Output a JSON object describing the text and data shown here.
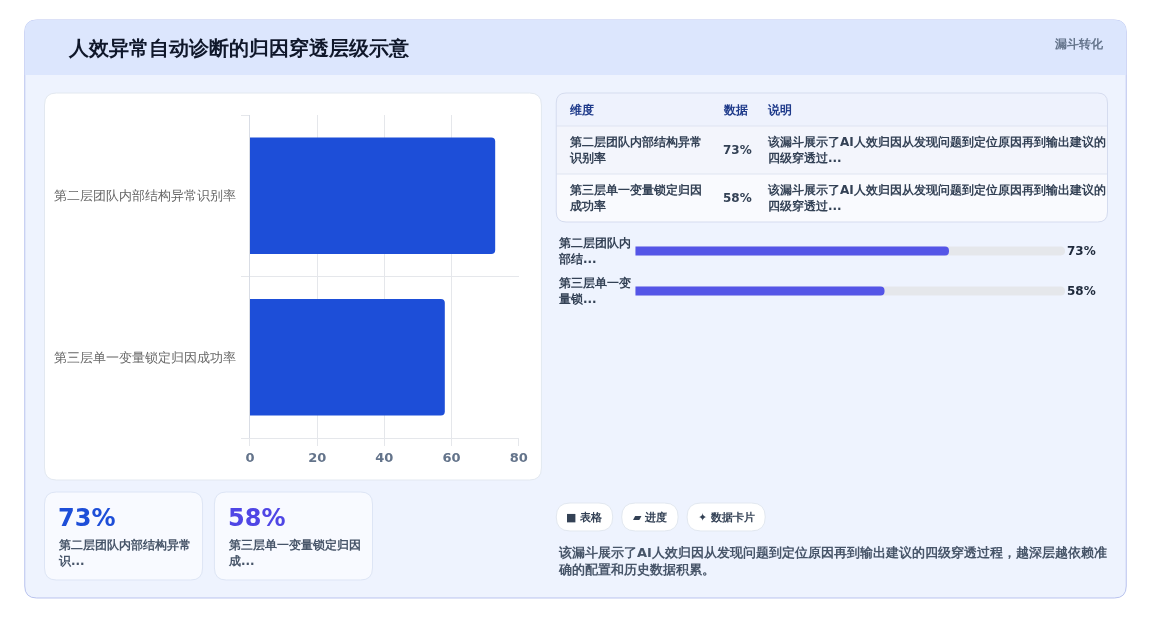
{
  "chart_data": [
    {
      "type": "other",
      "title": "人效异常自动诊断的归因穿透层级示意",
      "annotations": [
        "漏斗转化"
      ]
    },
    {
      "type": "bar",
      "orientation": "horizontal",
      "categories": [
        "第二层团队内部结构异常识别率",
        "第三层单一变量锁定归因成功率"
      ],
      "values": [
        73,
        58
      ],
      "color": "#1d4ed8",
      "xlim": [
        0,
        80
      ],
      "xticks": [
        0,
        20,
        40,
        60,
        80
      ],
      "grid": true
    },
    {
      "type": "other",
      "categories": [
        "维度",
        "数据",
        "说明"
      ],
      "annotations": [
        "第二层团队内部结构异常识别率",
        "73%",
        "该漏斗展示了AI人效归因从发现问题到定位原因再到输出建议的四级穿透过...",
        "第三层单一变量锁定归因成功率",
        "58%",
        "该漏斗展示了AI人效归因从发现问题到定位原因再到输出建议的四级穿透过..."
      ]
    },
    {
      "type": "bar",
      "orientation": "horizontal",
      "categories": [
        "第二层团队内部结...",
        "第三层单一变量锁..."
      ],
      "values": [
        73,
        58
      ],
      "value_labels": [
        "73%",
        "58%"
      ],
      "color": "#5455e7",
      "xlim": [
        0,
        100
      ],
      "tick_labels": "y"
    },
    {
      "type": "other",
      "annotations": [
        "73%",
        "第二层团队内部结构异常识...",
        "58%",
        "第三层单一变量锁定归因成..."
      ],
      "colors": [
        "#1d4ed8",
        "#4f46e5"
      ]
    },
    {
      "type": "other",
      "annotations": [
        "■ 表格",
        "▰ 进度",
        "✦ 数据卡片",
        "该漏斗展示了AI人效归因从发现问题到定位原因再到输出建议的四级穿透过程，越深层越依赖准确的配置和历史数据积累。"
      ]
    }
  ]
}
